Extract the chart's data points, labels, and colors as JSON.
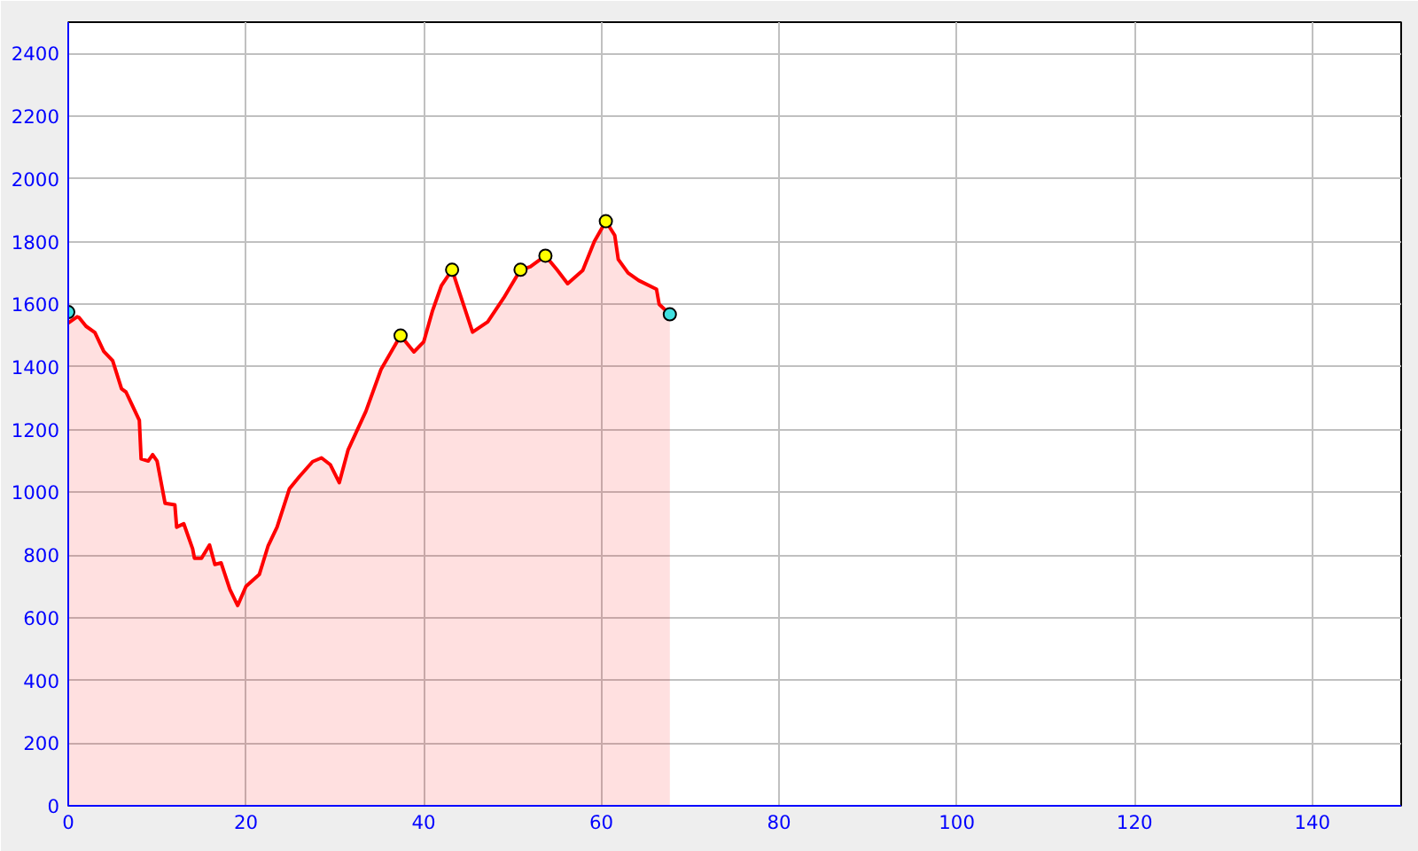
{
  "chart_data": {
    "type": "area",
    "xlim": [
      0,
      150
    ],
    "ylim": [
      0,
      2500
    ],
    "xticks": [
      0,
      20,
      40,
      60,
      80,
      100,
      120,
      140
    ],
    "yticks": [
      0,
      200,
      400,
      600,
      800,
      1000,
      1200,
      1400,
      1600,
      1800,
      2000,
      2200,
      2400
    ],
    "grid": true,
    "series": [
      {
        "color": "#ff0000",
        "marker": "none",
        "x": [
          0,
          1,
          1.2,
          2,
          3,
          4,
          5,
          6,
          6.5,
          7,
          8,
          8.2,
          9,
          9.5,
          10,
          10.9,
          12,
          12.2,
          13,
          14,
          14.2,
          15,
          15.9,
          16.5,
          17.2,
          18.2,
          19.07,
          20,
          21.5,
          22.5,
          23.5,
          24.9,
          26,
          27.5,
          28.5,
          29.5,
          30.5,
          31.5,
          33.5,
          35.2,
          37.4,
          38.9,
          40,
          41,
          42,
          43.2,
          44,
          45.5,
          47.2,
          49,
          50.9,
          52,
          53.7,
          55,
          56.2,
          57.9,
          59.2,
          60.5,
          61.5,
          61.9,
          63,
          64.2,
          66.2,
          66.5,
          67.7
        ],
        "values": [
          1540,
          1560,
          1558,
          1530,
          1510,
          1450,
          1420,
          1330,
          1320,
          1290,
          1230,
          1107,
          1100,
          1120,
          1100,
          965,
          960,
          889,
          900,
          820,
          790,
          790,
          832,
          770,
          775,
          690,
          639,
          700,
          738,
          830,
          889,
          1012,
          1050,
          1098,
          1110,
          1088,
          1031,
          1136,
          1259,
          1392,
          1500,
          1448,
          1480,
          1580,
          1660,
          1710,
          1640,
          1511,
          1544,
          1620,
          1710,
          1720,
          1755,
          1710,
          1666,
          1708,
          1800,
          1865,
          1820,
          1743,
          1700,
          1676,
          1648,
          1600,
          1568
        ]
      },
      {
        "type": "scatter",
        "color": "#ffff00",
        "marker": "circle",
        "x": [
          37.4,
          43.2,
          50.9,
          53.7,
          60.5
        ],
        "values": [
          1500,
          1710,
          1710,
          1755,
          1865
        ]
      },
      {
        "type": "scatter",
        "color": "#40e0e0",
        "marker": "circle",
        "x": [
          0,
          67.7
        ],
        "values": [
          1575,
          1568
        ]
      }
    ]
  }
}
